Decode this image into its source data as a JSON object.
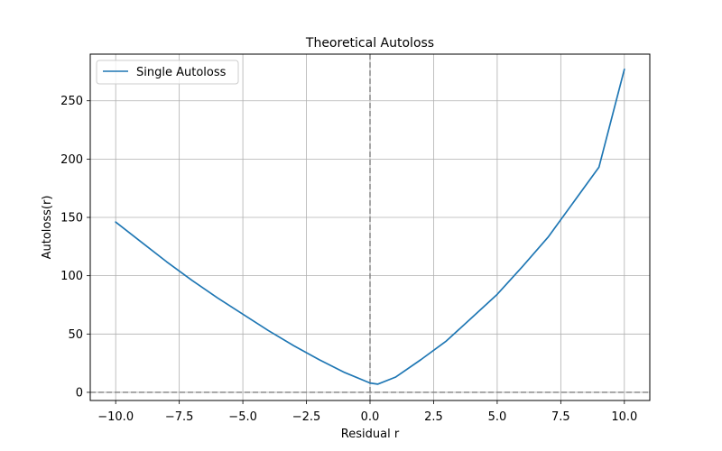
{
  "chart_data": {
    "type": "line",
    "title": "Theoretical Autoloss",
    "xlabel": "Residual r",
    "ylabel": "Autoloss(r)",
    "xlim": [
      -11.0,
      11.0
    ],
    "ylim": [
      -7.0,
      290.0
    ],
    "x_ticks": [
      -10.0,
      -7.5,
      -5.0,
      -2.5,
      0.0,
      2.5,
      5.0,
      7.5,
      10.0
    ],
    "x_tick_labels": [
      "−10.0",
      "−7.5",
      "−5.0",
      "−2.5",
      "0.0",
      "2.5",
      "5.0",
      "7.5",
      "10.0"
    ],
    "y_ticks": [
      0,
      50,
      100,
      150,
      200,
      250
    ],
    "y_tick_labels": [
      "0",
      "50",
      "100",
      "150",
      "200",
      "250"
    ],
    "grid": true,
    "legend": {
      "position": "top-left"
    },
    "reference_lines": [
      {
        "orientation": "vertical",
        "value": 0,
        "style": "dashed",
        "color": "#808080"
      },
      {
        "orientation": "horizontal",
        "value": 0,
        "style": "dashed",
        "color": "#808080"
      }
    ],
    "series": [
      {
        "name": "Single Autoloss",
        "color": "#1f77b4",
        "x": [
          -10,
          -9,
          -8,
          -7,
          -6,
          -5,
          -4,
          -3,
          -2,
          -1,
          0,
          0.3,
          1,
          2,
          3,
          4,
          5,
          6,
          7,
          8,
          9,
          10
        ],
        "y": [
          146,
          129,
          112,
          96,
          81,
          67,
          53,
          40,
          28,
          17,
          8,
          7,
          13,
          28,
          44,
          64,
          84,
          108,
          133,
          163,
          193,
          277
        ]
      }
    ]
  }
}
